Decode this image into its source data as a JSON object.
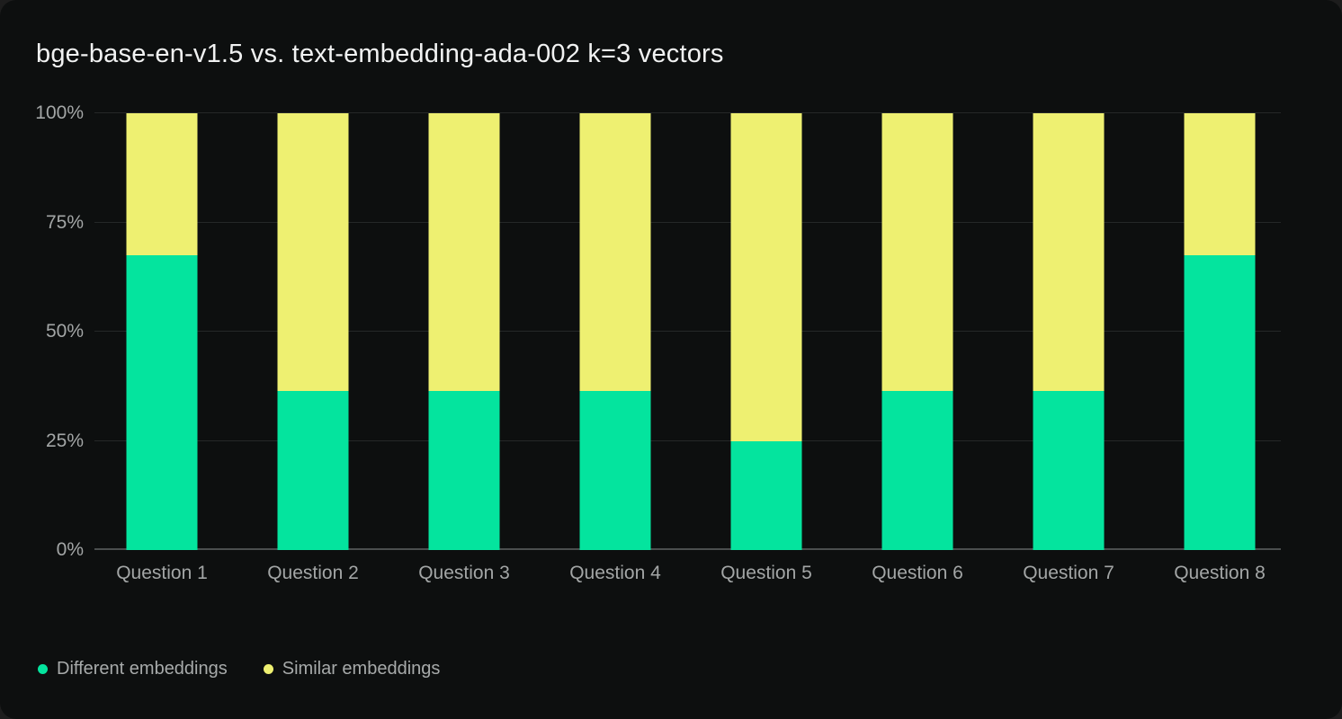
{
  "window": {
    "title": "bge-base-en-v1.5 vs. text-embedding-ada-002 k=3 vectors"
  },
  "colors": {
    "background": "#1D1D1D",
    "panel": "#0D0F0F",
    "grid": "#252828",
    "axis": "#4A4E4E",
    "text_primary": "#F1F2F2",
    "text_secondary": "#A3A6A6",
    "text_legend": "#A7AAAA",
    "series_different": "#04E49E",
    "series_similar": "#EEF071"
  },
  "chart_data": {
    "type": "bar",
    "stacked": true,
    "title": "bge-base-en-v1.5 vs. text-embedding-ada-002 k=3 vectors",
    "categories": [
      "Question 1",
      "Question 2",
      "Question 3",
      "Question 4",
      "Question 5",
      "Question 6",
      "Question 7",
      "Question 8"
    ],
    "series": [
      {
        "name": "Different embeddings",
        "color": "#04E49E",
        "values": [
          67.5,
          36.5,
          36.5,
          36.5,
          25,
          36.5,
          36.5,
          67.5
        ]
      },
      {
        "name": "Similar embeddings",
        "color": "#EEF071",
        "values": [
          32.5,
          63.5,
          63.5,
          63.5,
          75,
          63.5,
          63.5,
          32.5
        ]
      }
    ],
    "xlabel": "",
    "ylabel": "",
    "y_ticks": [
      "0%",
      "25%",
      "50%",
      "75%",
      "100%"
    ],
    "ylim": [
      0,
      100
    ],
    "grid": true,
    "legend_position": "bottom-left"
  }
}
